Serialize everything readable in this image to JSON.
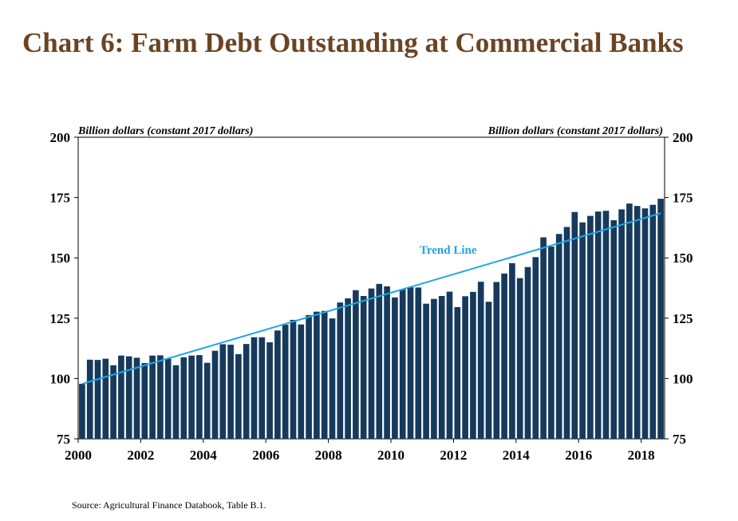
{
  "title": "Chart 6: Farm Debt Outstanding at Commercial Banks",
  "source": "Source: Agricultural Finance Databook, Table B.1.",
  "colors": {
    "title": "#6b4423",
    "bars": "#163a5c",
    "trend": "#1ea6e6"
  },
  "chart_data": {
    "type": "bar",
    "ylabel_left": "Billion dollars (constant 2017 dollars)",
    "ylabel_right": "Billion dollars (constant 2017 dollars)",
    "ylim": [
      75,
      200
    ],
    "yticks": [
      "75",
      "100",
      "125",
      "150",
      "175",
      "200"
    ],
    "xlim": [
      2000,
      2018.75
    ],
    "xticks": [
      "2000",
      "2002",
      "2004",
      "2006",
      "2008",
      "2010",
      "2012",
      "2014",
      "2016",
      "2018"
    ],
    "grid": false,
    "bar_frequency": "quarterly",
    "x_start": "2000-Q1",
    "series": [
      {
        "values": [
          97.8,
          107.8,
          107.7,
          108.2,
          105.5,
          109.5,
          109.2,
          108.6,
          106.4,
          109.5,
          109.6,
          108.2,
          105.5,
          108.8,
          109.5,
          109.7,
          106.5,
          111.5,
          114.2,
          114.0,
          110.1,
          114.3,
          117.1,
          117.1,
          115.0,
          119.9,
          122.3,
          124.3,
          122.4,
          126.3,
          127.7,
          128.0,
          124.9,
          131.5,
          133.2,
          136.6,
          134.2,
          137.3,
          139.2,
          138.2,
          133.6,
          136.9,
          137.8,
          137.7,
          131.0,
          133.0,
          134.2,
          136.0,
          129.6,
          134.1,
          135.9,
          140.1,
          131.8,
          140.0,
          143.5,
          147.8,
          141.6,
          146.2,
          150.3,
          158.5,
          154.7,
          159.9,
          162.8,
          169.0,
          164.7,
          167.4,
          169.2,
          169.5,
          165.6,
          170.1,
          172.5,
          171.5,
          170.5,
          172.0,
          174.5
        ]
      }
    ],
    "trend": {
      "label": "Trend Line",
      "start": 97.8,
      "end": 168.5
    }
  }
}
